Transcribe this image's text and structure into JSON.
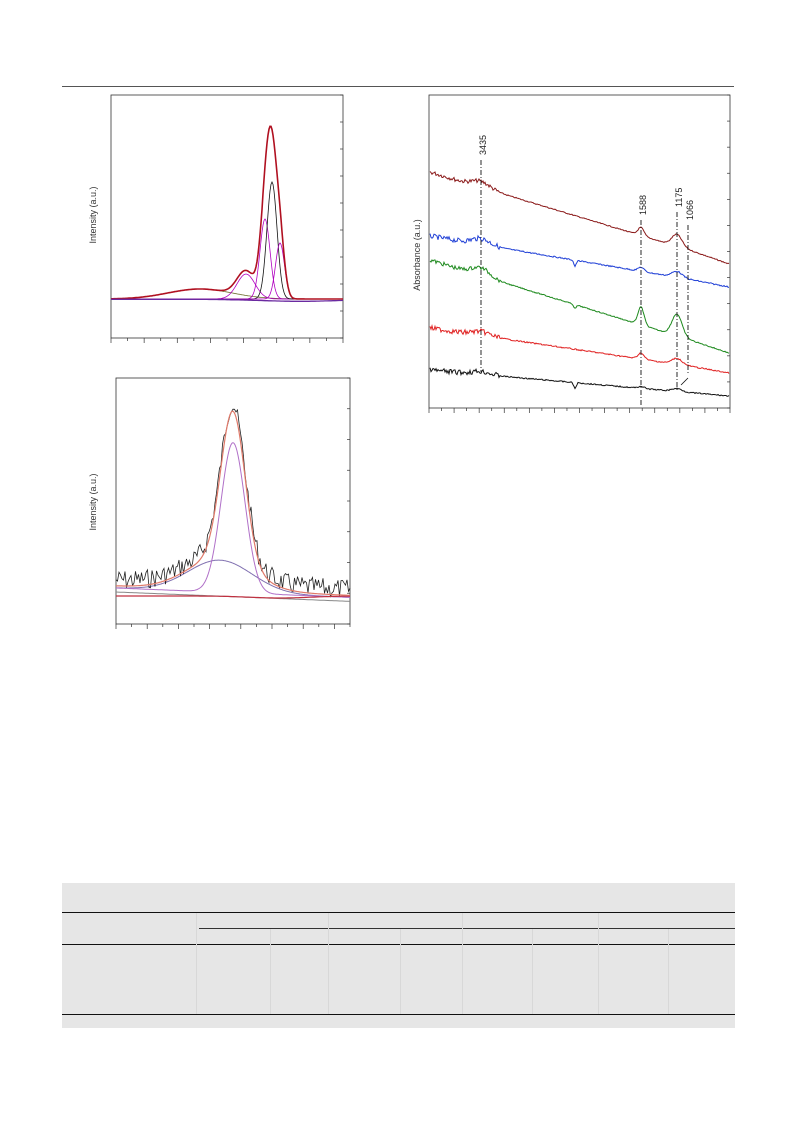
{
  "figures": {
    "xps_upper": {
      "ylabel": "Intensity (a.u.)"
    },
    "xps_lower": {
      "ylabel": "Intensity (a.u.)"
    },
    "ftir": {
      "ylabel": "Absorbance (a.u.)",
      "peak_labels": [
        "3435",
        "1588",
        "1175",
        "1066"
      ],
      "colors": {
        "darkred": "#8b1a1a",
        "blue": "#1f3fd6",
        "green": "#1e8a1e",
        "red": "#e02020",
        "black": "#111111"
      }
    }
  },
  "chart_data": [
    {
      "type": "line",
      "title": "",
      "ylabel": "Intensity (a.u.)",
      "xlabel": "",
      "series": [
        {
          "name": "",
          "color": "#b01020",
          "role": "envelope"
        },
        {
          "name": "",
          "color": "#111111",
          "role": "component"
        },
        {
          "name": "",
          "color": "#b000c0",
          "role": "component"
        },
        {
          "name": "",
          "color": "#6b6b2a",
          "role": "component"
        },
        {
          "name": "",
          "color": "#6a2aa0",
          "role": "baseline"
        }
      ]
    },
    {
      "type": "line",
      "title": "",
      "ylabel": "Intensity (a.u.)",
      "xlabel": "",
      "series": [
        {
          "name": "",
          "color": "#222222",
          "role": "raw"
        },
        {
          "name": "",
          "color": "#e07a6a",
          "role": "fit"
        },
        {
          "name": "",
          "color": "#b070c8",
          "role": "component"
        },
        {
          "name": "",
          "color": "#8070b0",
          "role": "component"
        },
        {
          "name": "",
          "color": "#888888",
          "role": "baseline"
        }
      ]
    },
    {
      "type": "line",
      "title": "",
      "ylabel": "Absorbance (a.u.)",
      "xlabel": "",
      "annotations": [
        "3435",
        "1588",
        "1175",
        "1066"
      ],
      "series": [
        {
          "name": "",
          "color": "#8b1a1a"
        },
        {
          "name": "",
          "color": "#1f3fd6"
        },
        {
          "name": "",
          "color": "#1e8a1e"
        },
        {
          "name": "",
          "color": "#e02020"
        },
        {
          "name": "",
          "color": "#111111"
        }
      ]
    }
  ]
}
